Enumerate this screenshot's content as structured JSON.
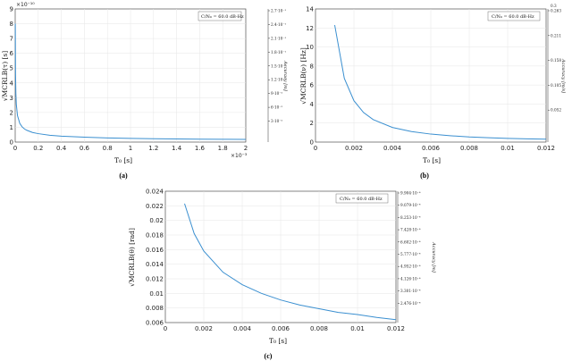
{
  "chart_data": [
    {
      "type": "line",
      "caption": "(a)",
      "legend": "C/N₀ = 60.0 dB-Hz",
      "xlabel": "T₀ [s]",
      "ylabel": "√MCRLB(τ) [s]",
      "y2label": "Accuracy [m]",
      "x_exponent": "×10⁻³",
      "y_exponent": "×10⁻¹⁰",
      "xlim": [
        0,
        2
      ],
      "ylim": [
        0,
        9
      ],
      "xticks": [
        "0",
        "0.2",
        "0.4",
        "0.6",
        "0.8",
        "1",
        "1.2",
        "1.4",
        "1.6",
        "1.8",
        "2"
      ],
      "yticks": [
        "0",
        "1",
        "2",
        "3",
        "4",
        "5",
        "6",
        "7",
        "8",
        "9"
      ],
      "y2ticks": [
        "2.7·10⁻¹",
        "2.4·10⁻¹",
        "2.1·10⁻¹",
        "1.8·10⁻¹",
        "1.5·10⁻¹",
        "1.2·10⁻¹",
        "9·10⁻²",
        "6·10⁻²",
        "3·10⁻²"
      ],
      "series": [
        {
          "x": [
            0.001,
            0.003,
            0.006,
            0.01,
            0.02,
            0.04,
            0.06,
            0.08,
            0.1,
            0.15,
            0.2,
            0.3,
            0.4,
            0.6,
            0.8,
            1.0,
            1.2,
            1.4,
            1.6,
            1.8,
            2.0
          ],
          "y": [
            8.0,
            4.62,
            3.27,
            2.53,
            1.79,
            1.26,
            1.03,
            0.89,
            0.8,
            0.65,
            0.57,
            0.46,
            0.4,
            0.33,
            0.28,
            0.25,
            0.23,
            0.21,
            0.2,
            0.19,
            0.18
          ]
        }
      ]
    },
    {
      "type": "line",
      "caption": "(b)",
      "legend": "C/N₀ = 60.0 dB-Hz",
      "xlabel": "T₀ [s]",
      "ylabel": "√MCRLB(ν) [Hz]",
      "y2label": "Accuracy [m/s]",
      "xlim": [
        0,
        0.012
      ],
      "ylim": [
        0,
        14
      ],
      "xticks": [
        "0",
        "0.002",
        "0.004",
        "0.006",
        "0.008",
        "0.01",
        "0.012"
      ],
      "yticks": [
        "0",
        "2",
        "4",
        "6",
        "8",
        "10",
        "12",
        "14"
      ],
      "y2ticks": [
        "0.263",
        "0.211",
        "0.158",
        "0.105",
        "0.052"
      ],
      "y2top": "0.3",
      "series": [
        {
          "x": [
            0.001,
            0.0015,
            0.002,
            0.0025,
            0.003,
            0.004,
            0.005,
            0.006,
            0.007,
            0.008,
            0.009,
            0.01,
            0.011,
            0.012
          ],
          "y": [
            12.3,
            6.7,
            4.35,
            3.11,
            2.37,
            1.54,
            1.1,
            0.84,
            0.67,
            0.54,
            0.46,
            0.39,
            0.34,
            0.3
          ]
        }
      ]
    },
    {
      "type": "line",
      "caption": "(c)",
      "legend": "C/N₀ = 60.0 dB-Hz",
      "xlabel": "T₀ [s]",
      "ylabel": "√MCRLB(θ) [rad]",
      "y2label": "Accuracy [m]",
      "xlim": [
        0,
        0.012
      ],
      "ylim": [
        0.006,
        0.024
      ],
      "xticks": [
        "0",
        "0.002",
        "0.004",
        "0.006",
        "0.008",
        "0.01",
        "0.012"
      ],
      "yticks": [
        "0.006",
        "0.008",
        "0.01",
        "0.012",
        "0.014",
        "0.016",
        "0.018",
        "0.02",
        "0.022",
        "0.024"
      ],
      "y2ticks": [
        "9.904·10⁻⁴",
        "9.079·10⁻⁴",
        "8.253·10⁻⁴",
        "7.428·10⁻⁴",
        "6.602·10⁻⁴",
        "5.777·10⁻⁴",
        "4.952·10⁻⁴",
        "4.126·10⁻⁴",
        "3.301·10⁻⁴",
        "2.476·10⁻⁴"
      ],
      "series": [
        {
          "x": [
            0.001,
            0.0015,
            0.002,
            0.003,
            0.004,
            0.005,
            0.006,
            0.007,
            0.008,
            0.009,
            0.01,
            0.011,
            0.012
          ],
          "y": [
            0.0223,
            0.0182,
            0.0158,
            0.0129,
            0.0112,
            0.01,
            0.0091,
            0.0084,
            0.0079,
            0.0074,
            0.0071,
            0.0067,
            0.0064
          ]
        }
      ]
    }
  ],
  "colors": {
    "line": "#3a8fd0",
    "grid": "#e6e6e6",
    "axis": "#333333"
  }
}
